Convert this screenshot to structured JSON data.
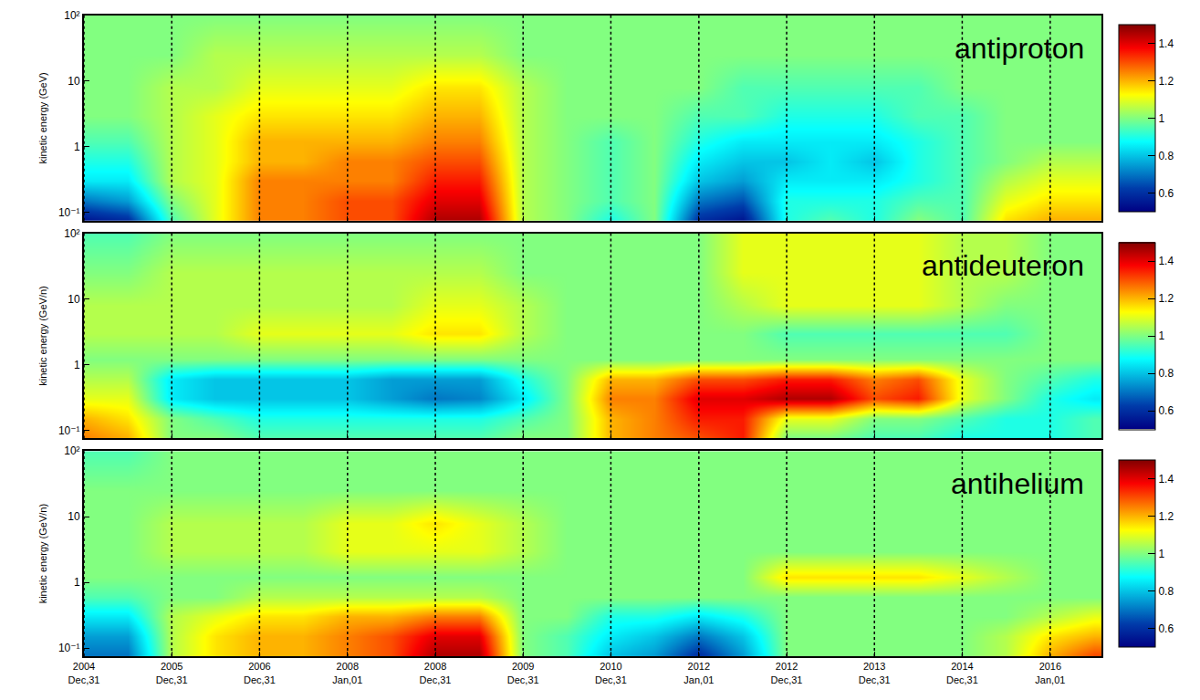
{
  "chart_data": [
    {
      "type": "heatmap",
      "annotations": [
        "antiproton"
      ],
      "y_label": "kinetic energy (GeV)",
      "color": "Jet",
      "log": "y",
      "grid": true,
      "tick_labels": "y",
      "xlim": [
        "2004-12-31",
        "2016-08-01"
      ],
      "ylim": [
        0.075,
        100
      ],
      "xticks": [
        {
          "value": "2004-12-31",
          "label": "2004\nDec,31"
        },
        {
          "value": "2005-12-31",
          "label": "2005\nDec,31"
        },
        {
          "value": "2006-12-31",
          "label": "2006\nDec,31"
        },
        {
          "value": "2008-01-01",
          "label": "2008\nJan,01"
        },
        {
          "value": "2008-12-31",
          "label": "2008\nDec,31"
        },
        {
          "value": "2009-12-31",
          "label": "2009\nDec,31"
        },
        {
          "value": "2010-12-31",
          "label": "2010\nDec,31"
        },
        {
          "value": "2012-01-01",
          "label": "2012\nJan,01"
        },
        {
          "value": "2012-12-31",
          "label": "2012\nDec,31"
        },
        {
          "value": "2013-12-31",
          "label": "2013\nDec,31"
        },
        {
          "value": "2014-12-31",
          "label": "2014\nDec,31"
        },
        {
          "value": "2016-01-01",
          "label": "2016\nJan,01"
        }
      ],
      "yticks": [
        {
          "value": 0.1,
          "label": "10⁻¹"
        },
        1,
        10,
        {
          "value": 100,
          "label": "10²"
        }
      ],
      "zlim": [
        0.5,
        1.5
      ],
      "zticks": [
        0.6,
        0.8,
        1,
        1.2,
        1.4
      ],
      "x": [
        "2005-01-01",
        "2005-07-01",
        "2006-01-01",
        "2006-07-01",
        "2007-01-01",
        "2007-07-01",
        "2008-01-01",
        "2008-07-01",
        "2009-01-01",
        "2009-07-01",
        "2010-01-01",
        "2010-07-01",
        "2011-01-01",
        "2011-07-01",
        "2012-01-01",
        "2012-07-01",
        "2013-01-01",
        "2013-07-01",
        "2014-01-01",
        "2014-07-01",
        "2015-01-01",
        "2015-07-01",
        "2016-01-01",
        "2016-07-01"
      ],
      "y": [
        0.08,
        0.15,
        0.3,
        0.6,
        1.2,
        3,
        8,
        25,
        100
      ],
      "z": [
        [
          0.55,
          0.6,
          0.95,
          1.1,
          1.25,
          1.25,
          1.3,
          1.3,
          1.45,
          1.45,
          1.05,
          1.0,
          0.9,
          1.0,
          0.6,
          0.55,
          0.9,
          0.95,
          0.9,
          1.0,
          0.95,
          1.15,
          1.2,
          1.2
        ],
        [
          0.7,
          0.75,
          1.0,
          1.1,
          1.25,
          1.25,
          1.3,
          1.3,
          1.4,
          1.4,
          1.05,
          1.0,
          0.95,
          1.0,
          0.7,
          0.65,
          0.9,
          0.9,
          0.9,
          0.95,
          0.95,
          1.1,
          1.15,
          1.15
        ],
        [
          0.85,
          0.85,
          1.05,
          1.1,
          1.25,
          1.25,
          1.25,
          1.25,
          1.35,
          1.35,
          1.05,
          1.0,
          0.95,
          1.0,
          0.8,
          0.75,
          0.85,
          0.85,
          0.85,
          0.9,
          0.95,
          1.05,
          1.1,
          1.1
        ],
        [
          0.9,
          0.9,
          1.05,
          1.1,
          1.2,
          1.2,
          1.25,
          1.25,
          1.3,
          1.3,
          1.05,
          1.0,
          0.95,
          1.0,
          0.85,
          0.8,
          0.8,
          0.85,
          0.8,
          0.9,
          0.95,
          1.0,
          1.05,
          1.05
        ],
        [
          0.95,
          0.95,
          1.05,
          1.1,
          1.2,
          1.2,
          1.2,
          1.2,
          1.25,
          1.25,
          1.05,
          1.0,
          0.95,
          1.0,
          0.9,
          0.85,
          0.85,
          0.85,
          0.85,
          0.9,
          0.95,
          1.0,
          1.0,
          1.0
        ],
        [
          1.0,
          1.0,
          1.05,
          1.1,
          1.15,
          1.15,
          1.15,
          1.15,
          1.2,
          1.2,
          1.05,
          1.0,
          1.0,
          1.0,
          0.95,
          0.95,
          0.9,
          0.9,
          0.9,
          0.95,
          0.95,
          1.0,
          1.0,
          1.0
        ],
        [
          1.0,
          1.0,
          1.05,
          1.05,
          1.1,
          1.1,
          1.1,
          1.1,
          1.15,
          1.15,
          1.05,
          1.0,
          1.0,
          1.0,
          1.0,
          0.95,
          0.95,
          0.95,
          0.95,
          0.95,
          1.0,
          1.0,
          1.0,
          1.0
        ],
        [
          1.0,
          1.0,
          1.0,
          1.05,
          1.05,
          1.05,
          1.05,
          1.05,
          1.05,
          1.05,
          1.0,
          1.0,
          1.0,
          1.0,
          1.0,
          1.0,
          1.0,
          1.0,
          1.0,
          1.0,
          1.0,
          1.0,
          1.0,
          1.0
        ],
        [
          1.0,
          1.0,
          1.0,
          1.0,
          1.0,
          1.0,
          1.0,
          1.0,
          1.0,
          1.0,
          1.0,
          1.0,
          1.0,
          1.0,
          1.0,
          1.0,
          1.0,
          1.0,
          1.0,
          1.0,
          1.0,
          1.0,
          1.0,
          1.0
        ]
      ]
    },
    {
      "type": "heatmap",
      "annotations": [
        "antideuteron"
      ],
      "y_label": "kinetic energy (GeV/n)",
      "color": "Jet",
      "log": "y",
      "grid": true,
      "tick_labels": "y",
      "xlim": [
        "2004-12-31",
        "2016-08-01"
      ],
      "ylim": [
        0.075,
        100
      ],
      "xticks": [
        {
          "value": "2004-12-31",
          "label": "2004\nDec,31"
        },
        {
          "value": "2005-12-31",
          "label": "2005\nDec,31"
        },
        {
          "value": "2006-12-31",
          "label": "2006\nDec,31"
        },
        {
          "value": "2008-01-01",
          "label": "2008\nJan,01"
        },
        {
          "value": "2008-12-31",
          "label": "2008\nDec,31"
        },
        {
          "value": "2009-12-31",
          "label": "2009\nDec,31"
        },
        {
          "value": "2010-12-31",
          "label": "2010\nDec,31"
        },
        {
          "value": "2012-01-01",
          "label": "2012\nJan,01"
        },
        {
          "value": "2012-12-31",
          "label": "2012\nDec,31"
        },
        {
          "value": "2013-12-31",
          "label": "2013\nDec,31"
        },
        {
          "value": "2014-12-31",
          "label": "2014\nDec,31"
        },
        {
          "value": "2016-01-01",
          "label": "2016\nJan,01"
        }
      ],
      "yticks": [
        {
          "value": 0.1,
          "label": "10⁻¹"
        },
        1,
        10,
        {
          "value": 100,
          "label": "10²"
        }
      ],
      "zlim": [
        0.5,
        1.5
      ],
      "zticks": [
        0.6,
        0.8,
        1,
        1.2,
        1.4
      ],
      "x": [
        "2005-01-01",
        "2005-07-01",
        "2006-01-01",
        "2006-07-01",
        "2007-01-01",
        "2007-07-01",
        "2008-01-01",
        "2008-07-01",
        "2009-01-01",
        "2009-07-01",
        "2010-01-01",
        "2010-07-01",
        "2011-01-01",
        "2011-07-01",
        "2012-01-01",
        "2012-07-01",
        "2013-01-01",
        "2013-07-01",
        "2014-01-01",
        "2014-07-01",
        "2015-01-01",
        "2015-07-01",
        "2016-01-01",
        "2016-07-01"
      ],
      "y": [
        0.08,
        0.15,
        0.3,
        0.6,
        1.2,
        3,
        8,
        25,
        100
      ],
      "z": [
        [
          1.25,
          1.2,
          1.0,
          1.0,
          0.95,
          0.95,
          0.95,
          0.95,
          0.95,
          0.95,
          1.0,
          1.0,
          1.2,
          1.25,
          1.3,
          1.35,
          1.0,
          1.0,
          0.95,
          0.95,
          0.9,
          0.9,
          0.9,
          0.95
        ],
        [
          1.2,
          1.15,
          1.0,
          0.95,
          0.9,
          0.9,
          0.9,
          0.9,
          0.9,
          0.9,
          0.95,
          1.0,
          1.2,
          1.25,
          1.35,
          1.35,
          1.1,
          1.1,
          1.0,
          1.0,
          0.95,
          0.9,
          0.9,
          0.95
        ],
        [
          1.1,
          1.1,
          0.85,
          0.8,
          0.8,
          0.8,
          0.8,
          0.75,
          0.7,
          0.72,
          0.85,
          1.0,
          1.25,
          1.25,
          1.4,
          1.4,
          1.45,
          1.45,
          1.3,
          1.35,
          1.1,
          1.0,
          0.9,
          0.85
        ],
        [
          1.05,
          1.05,
          0.85,
          0.8,
          0.8,
          0.8,
          0.8,
          0.75,
          0.75,
          0.75,
          0.9,
          1.0,
          1.2,
          1.2,
          1.3,
          1.3,
          1.35,
          1.35,
          1.25,
          1.3,
          1.1,
          1.0,
          0.95,
          0.9
        ],
        [
          1.0,
          1.0,
          1.0,
          1.0,
          1.0,
          1.0,
          1.0,
          1.0,
          1.0,
          1.0,
          1.0,
          1.0,
          1.0,
          1.0,
          1.0,
          1.0,
          1.0,
          1.0,
          1.0,
          1.0,
          1.0,
          1.0,
          1.0,
          1.0
        ],
        [
          1.05,
          1.05,
          1.05,
          1.05,
          1.1,
          1.1,
          1.1,
          1.1,
          1.15,
          1.15,
          1.05,
          1.0,
          1.0,
          1.0,
          1.0,
          1.0,
          0.95,
          0.95,
          0.95,
          0.95,
          0.95,
          0.95,
          1.0,
          1.0
        ],
        [
          1.05,
          1.05,
          1.05,
          1.05,
          1.05,
          1.05,
          1.05,
          1.05,
          1.1,
          1.1,
          1.05,
          1.0,
          1.0,
          1.0,
          1.0,
          1.05,
          1.1,
          1.1,
          1.1,
          1.1,
          1.05,
          1.0,
          1.0,
          1.0
        ],
        [
          1.0,
          1.0,
          1.05,
          1.05,
          1.05,
          1.05,
          1.05,
          1.05,
          1.05,
          1.05,
          1.0,
          1.0,
          1.0,
          1.0,
          1.0,
          1.1,
          1.1,
          1.1,
          1.1,
          1.1,
          1.05,
          1.05,
          1.0,
          1.0
        ],
        [
          0.95,
          0.95,
          1.0,
          1.0,
          1.0,
          1.0,
          1.0,
          1.0,
          1.0,
          1.0,
          1.0,
          1.0,
          1.0,
          1.0,
          1.0,
          1.1,
          1.1,
          1.1,
          1.1,
          1.1,
          1.05,
          1.05,
          1.0,
          1.0
        ]
      ]
    },
    {
      "type": "heatmap",
      "annotations": [
        "antihelium"
      ],
      "y_label": "kinetic energy (GeV/n)",
      "color": "Jet",
      "log": "y",
      "grid": true,
      "xlim": [
        "2004-12-31",
        "2016-08-01"
      ],
      "ylim": [
        0.075,
        100
      ],
      "xticks": [
        {
          "value": "2004-12-31",
          "label": "2004\nDec,31"
        },
        {
          "value": "2005-12-31",
          "label": "2005\nDec,31"
        },
        {
          "value": "2006-12-31",
          "label": "2006\nDec,31"
        },
        {
          "value": "2008-01-01",
          "label": "2008\nJan,01"
        },
        {
          "value": "2008-12-31",
          "label": "2008\nDec,31"
        },
        {
          "value": "2009-12-31",
          "label": "2009\nDec,31"
        },
        {
          "value": "2010-12-31",
          "label": "2010\nDec,31"
        },
        {
          "value": "2012-01-01",
          "label": "2012\nJan,01"
        },
        {
          "value": "2012-12-31",
          "label": "2012\nDec,31"
        },
        {
          "value": "2013-12-31",
          "label": "2013\nDec,31"
        },
        {
          "value": "2014-12-31",
          "label": "2014\nDec,31"
        },
        {
          "value": "2016-01-01",
          "label": "2016\nJan,01"
        }
      ],
      "yticks": [
        {
          "value": 0.1,
          "label": "10⁻¹"
        },
        1,
        10,
        {
          "value": 100,
          "label": "10²"
        }
      ],
      "zlim": [
        0.5,
        1.5
      ],
      "zticks": [
        0.6,
        0.8,
        1,
        1.2,
        1.4
      ],
      "x": [
        "2005-01-01",
        "2005-07-01",
        "2006-01-01",
        "2006-07-01",
        "2007-01-01",
        "2007-07-01",
        "2008-01-01",
        "2008-07-01",
        "2009-01-01",
        "2009-07-01",
        "2010-01-01",
        "2010-07-01",
        "2011-01-01",
        "2011-07-01",
        "2012-01-01",
        "2012-07-01",
        "2013-01-01",
        "2013-07-01",
        "2014-01-01",
        "2014-07-01",
        "2015-01-01",
        "2015-07-01",
        "2016-01-01",
        "2016-07-01"
      ],
      "y": [
        0.08,
        0.15,
        0.3,
        0.6,
        1.2,
        3,
        8,
        25,
        100
      ],
      "z": [
        [
          0.7,
          0.7,
          1.05,
          1.15,
          1.2,
          1.2,
          1.25,
          1.3,
          1.45,
          1.45,
          1.0,
          0.95,
          0.8,
          0.75,
          0.6,
          0.75,
          1.0,
          1.0,
          1.0,
          1.0,
          1.0,
          1.05,
          1.2,
          1.3
        ],
        [
          0.75,
          0.75,
          1.05,
          1.15,
          1.2,
          1.2,
          1.25,
          1.3,
          1.4,
          1.4,
          1.0,
          0.95,
          0.85,
          0.8,
          0.7,
          0.8,
          1.0,
          1.0,
          1.0,
          1.0,
          1.0,
          1.05,
          1.15,
          1.2
        ],
        [
          0.85,
          0.85,
          1.05,
          1.1,
          1.15,
          1.15,
          1.2,
          1.2,
          1.25,
          1.25,
          1.0,
          1.0,
          0.9,
          0.9,
          0.85,
          0.9,
          1.0,
          1.0,
          1.0,
          1.0,
          1.0,
          1.0,
          1.05,
          1.1
        ],
        [
          0.95,
          0.95,
          1.0,
          1.0,
          1.05,
          1.05,
          1.05,
          1.05,
          1.05,
          1.05,
          1.0,
          1.0,
          1.0,
          1.0,
          1.0,
          1.0,
          1.0,
          1.0,
          1.0,
          1.0,
          1.0,
          1.0,
          1.0,
          1.0
        ],
        [
          1.0,
          1.0,
          1.0,
          1.0,
          1.0,
          1.0,
          1.0,
          1.0,
          1.0,
          1.0,
          1.0,
          1.0,
          1.0,
          1.0,
          1.0,
          1.0,
          1.15,
          1.15,
          1.15,
          1.15,
          1.1,
          1.05,
          1.0,
          1.0
        ],
        [
          1.0,
          1.0,
          1.05,
          1.05,
          1.05,
          1.05,
          1.1,
          1.1,
          1.1,
          1.1,
          1.05,
          1.0,
          1.0,
          1.0,
          1.0,
          1.0,
          1.0,
          1.0,
          1.0,
          1.0,
          1.0,
          1.0,
          1.0,
          1.0
        ],
        [
          1.0,
          1.0,
          1.05,
          1.05,
          1.05,
          1.05,
          1.1,
          1.1,
          1.15,
          1.1,
          1.05,
          1.0,
          1.0,
          1.0,
          1.0,
          1.0,
          1.0,
          1.0,
          1.0,
          1.0,
          1.0,
          1.0,
          1.0,
          1.0
        ],
        [
          1.0,
          1.0,
          1.0,
          1.0,
          1.0,
          1.0,
          1.0,
          1.0,
          1.0,
          1.0,
          1.0,
          1.0,
          1.0,
          1.0,
          1.0,
          1.0,
          1.0,
          1.0,
          1.0,
          1.0,
          1.0,
          1.0,
          1.0,
          1.0
        ],
        [
          0.95,
          0.95,
          1.0,
          1.0,
          1.0,
          1.0,
          1.0,
          1.0,
          1.0,
          1.0,
          1.0,
          1.0,
          1.0,
          1.0,
          1.0,
          1.0,
          1.0,
          1.0,
          1.0,
          1.0,
          1.0,
          1.0,
          1.0,
          1.0
        ]
      ]
    }
  ]
}
